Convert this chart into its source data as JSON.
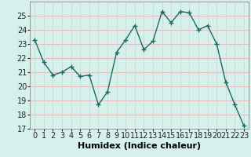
{
  "x": [
    0,
    1,
    2,
    3,
    4,
    5,
    6,
    7,
    8,
    9,
    10,
    11,
    12,
    13,
    14,
    15,
    16,
    17,
    18,
    19,
    20,
    21,
    22,
    23
  ],
  "y": [
    23.3,
    21.7,
    20.8,
    21.0,
    21.4,
    20.7,
    20.8,
    18.7,
    19.6,
    22.4,
    23.3,
    24.3,
    22.6,
    23.2,
    25.3,
    24.5,
    25.3,
    25.2,
    24.0,
    24.3,
    23.0,
    20.3,
    18.7,
    17.2
  ],
  "line_color": "#1a6b5e",
  "marker": "+",
  "marker_size": 5,
  "marker_color": "#1a6b5e",
  "background_color": "#d6f0ec",
  "grid_color_h": "#e8b8b8",
  "grid_color_v": "#c8deda",
  "xlabel": "Humidex (Indice chaleur)",
  "ylim": [
    17,
    26
  ],
  "yticks": [
    17,
    18,
    19,
    20,
    21,
    22,
    23,
    24,
    25
  ],
  "xticks": [
    0,
    1,
    2,
    3,
    4,
    5,
    6,
    7,
    8,
    9,
    10,
    11,
    12,
    13,
    14,
    15,
    16,
    17,
    18,
    19,
    20,
    21,
    22,
    23
  ],
  "xlabel_fontsize": 8,
  "tick_fontsize": 7
}
